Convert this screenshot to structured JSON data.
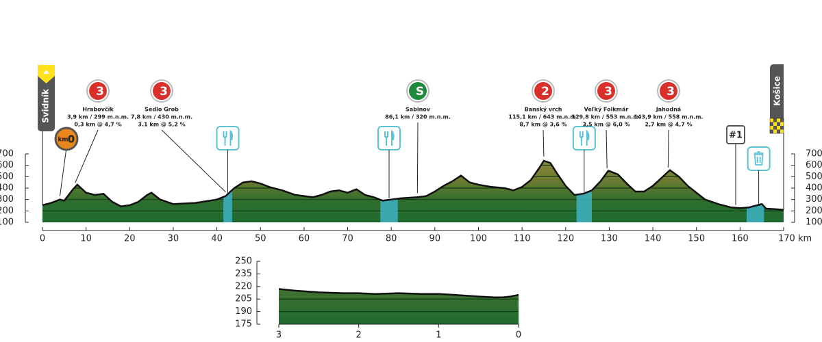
{
  "chart_data": [
    {
      "type": "area",
      "x": [
        0,
        2,
        4,
        5,
        7,
        8,
        10,
        12,
        14,
        16,
        18,
        20,
        22,
        24,
        25,
        27,
        30,
        35,
        40,
        42,
        44,
        46,
        48,
        50,
        52,
        55,
        58,
        62,
        64,
        66,
        68,
        70,
        72,
        74,
        76,
        78,
        80,
        82,
        86,
        88,
        90,
        92,
        94,
        96,
        98,
        100,
        103,
        106,
        108,
        110,
        112,
        114,
        115,
        116.5,
        118,
        120,
        122,
        124,
        126,
        128,
        129.8,
        132,
        134,
        136,
        138,
        140,
        142,
        143.9,
        146,
        148,
        150,
        152,
        155,
        158,
        160,
        162,
        164,
        165,
        166,
        168,
        170
      ],
      "values": [
        250,
        270,
        300,
        290,
        390,
        430,
        360,
        340,
        350,
        280,
        240,
        250,
        280,
        340,
        360,
        300,
        260,
        270,
        300,
        330,
        400,
        450,
        460,
        440,
        410,
        380,
        340,
        320,
        340,
        370,
        380,
        360,
        390,
        340,
        320,
        290,
        300,
        310,
        320,
        330,
        370,
        420,
        460,
        510,
        450,
        430,
        410,
        400,
        380,
        410,
        470,
        580,
        640,
        620,
        530,
        420,
        340,
        350,
        380,
        460,
        553,
        520,
        440,
        370,
        370,
        420,
        490,
        558,
        500,
        420,
        360,
        300,
        260,
        230,
        225,
        230,
        250,
        260,
        220,
        215,
        210
      ],
      "xlim": [
        0,
        170
      ],
      "xticks": [
        0,
        10,
        20,
        30,
        40,
        50,
        60,
        70,
        80,
        90,
        100,
        110,
        120,
        130,
        140,
        150,
        160,
        {
          "value": 170,
          "label": "170 km"
        }
      ],
      "ylim": [
        100,
        700
      ],
      "yticks": [
        100,
        200,
        300,
        400,
        500,
        600,
        700
      ],
      "markers": [
        {
          "badge": "3",
          "name": "Hrabovčík",
          "lines": [
            "3,9 km / 299 m.n.m.",
            "0,3 km @ 4,7 %"
          ],
          "km": 7.5,
          "color": "#d9302c"
        },
        {
          "badge": "3",
          "name": "Sedlo Grob",
          "lines": [
            "7,8 km / 430 m.n.m.",
            "3.1 km @ 5,2 %"
          ],
          "km": 42,
          "color": "#d9302c"
        },
        {
          "badge": "S",
          "name": "Sabinov",
          "lines": [
            "86,1 km / 320 m.n.m."
          ],
          "km": 86,
          "color": "#1e8a3e"
        },
        {
          "badge": "2",
          "name": "Banský vrch",
          "lines": [
            "115,1 km / 643 m.n.m.",
            "8,7 km @ 3,6 %"
          ],
          "km": 115,
          "color": "#d9302c"
        },
        {
          "badge": "3",
          "name": "Veľký Folkmár",
          "lines": [
            "129,8 km / 553 m.n.m.",
            "3,5 km @ 6,0 %"
          ],
          "km": 129.5,
          "color": "#d9302c"
        },
        {
          "badge": "3",
          "name": "Jahodná",
          "lines": [
            "143,9 km / 558 m.n.m.",
            "2,7 km @ 4,7 %"
          ],
          "km": 143.5,
          "color": "#d9302c"
        }
      ],
      "zones": [
        {
          "kind": "food",
          "start": 41.5,
          "end": 43.5
        },
        {
          "kind": "food",
          "start": 77.5,
          "end": 81.5
        },
        {
          "kind": "food",
          "start": 122.5,
          "end": 126
        },
        {
          "kind": "waste",
          "start": 161.5,
          "end": 165.5
        }
      ],
      "start": {
        "name": "Svidník",
        "km": 0
      },
      "finish": {
        "name": "Košice",
        "km": 170
      },
      "km_zero": {
        "unit": "km",
        "digit": "0",
        "km": 4
      },
      "sprint": {
        "label": "#1",
        "km": 159
      }
    },
    {
      "type": "area",
      "x": [
        3,
        2.8,
        2.5,
        2.2,
        2,
        1.8,
        1.5,
        1.2,
        1,
        0.8,
        0.5,
        0.3,
        0.2,
        0.1,
        0
      ],
      "values": [
        217,
        215,
        213,
        212,
        212,
        211,
        212,
        211,
        211,
        210,
        208,
        207,
        207,
        208,
        210
      ],
      "xlim": [
        3,
        0
      ],
      "xticks": [
        3,
        2,
        1,
        0
      ],
      "ylim": [
        175,
        250
      ],
      "yticks": [
        175,
        190,
        205,
        220,
        235,
        250
      ]
    }
  ]
}
